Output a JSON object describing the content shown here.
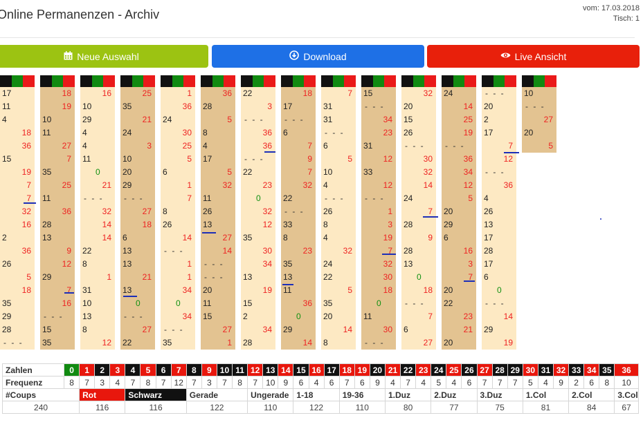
{
  "header": {
    "title": "Online Permanenzen - Archiv",
    "date": "vom: 17.03.2018",
    "table": "Tisch: 1"
  },
  "buttons": {
    "new_selection": "Neue Auswahl",
    "download": "Download",
    "live": "Live Ansicht"
  },
  "icons": [
    "calendar-icon",
    "download-circle-icon",
    "eye-icon"
  ],
  "colors": {
    "green": "#9cc312",
    "blue": "#1e70e6",
    "red": "#e8200b",
    "col_light": "#fde9c3",
    "col_dark": "#e3c391"
  },
  "permanence_columns": [
    [
      "17",
      "11",
      "4",
      "18",
      "36",
      "15",
      "19",
      "7",
      "7",
      "32",
      "16",
      "2",
      "36",
      "26",
      "5",
      "18",
      "35",
      "29",
      "28",
      "-"
    ],
    [
      "18",
      "19",
      "10",
      "11",
      "27",
      "7",
      "35",
      "25",
      "11",
      "36",
      "28",
      "13",
      "9",
      "12",
      "29",
      "7",
      "16",
      "-",
      "15",
      "35"
    ],
    [
      "16",
      "10",
      "29",
      "4",
      "4",
      "11",
      "0",
      "21",
      "-",
      "32",
      "14",
      "14",
      "22",
      "8",
      "1",
      "31",
      "10",
      "13",
      "8",
      "12"
    ],
    [
      "25",
      "35",
      "21",
      "24",
      "3",
      "10",
      "20",
      "29",
      "-",
      "27",
      "18",
      "6",
      "13",
      "13",
      "21",
      "13",
      "0",
      "-",
      "27",
      "22"
    ],
    [
      "1",
      "36",
      "24",
      "30",
      "25",
      "5",
      "6",
      "1",
      "7",
      "8",
      "26",
      "14",
      "-",
      "1",
      "1",
      "34",
      "0",
      "34",
      "-",
      "35"
    ],
    [
      "36",
      "28",
      "5",
      "8",
      "4",
      "17",
      "5",
      "32",
      "11",
      "26",
      "13",
      "27",
      "14",
      "-",
      "-",
      "20",
      "11",
      "15",
      "27",
      "1"
    ],
    [
      "22",
      "3",
      "-",
      "36",
      "36",
      "-",
      "22",
      "23",
      "0",
      "32",
      "12",
      "35",
      "30",
      "34",
      "13",
      "19",
      "15",
      "2",
      "34",
      "28"
    ],
    [
      "18",
      "17",
      "-",
      "6",
      "7",
      "9",
      "7",
      "32",
      "22",
      "-",
      "33",
      "8",
      "23",
      "35",
      "13",
      "11",
      "36",
      "0",
      "29",
      "14"
    ],
    [
      "7",
      "31",
      "31",
      "-",
      "6",
      "5",
      "10",
      "4",
      "-",
      "26",
      "8",
      "4",
      "32",
      "24",
      "22",
      "5",
      "35",
      "20",
      "14",
      "8"
    ],
    [
      "15",
      "-",
      "34",
      "23",
      "31",
      "12",
      "33",
      "12",
      "-",
      "1",
      "3",
      "19",
      "7",
      "32",
      "30",
      "18",
      "0",
      "11",
      "30",
      "-"
    ],
    [
      "32",
      "20",
      "15",
      "26",
      "-",
      "30",
      "32",
      "14",
      "24",
      "7",
      "28",
      "9",
      "28",
      "13",
      "0",
      "18",
      "-",
      "7",
      "6",
      "27"
    ],
    [
      "24",
      "14",
      "25",
      "19",
      "-",
      "36",
      "34",
      "12",
      "5",
      "20",
      "29",
      "6",
      "16",
      "3",
      "7",
      "20",
      "22",
      "23",
      "21",
      "20"
    ],
    [
      "-",
      "20",
      "2",
      "17",
      "7",
      "12",
      "-",
      "36",
      "4",
      "26",
      "13",
      "17",
      "28",
      "17",
      "6",
      "0",
      "-",
      "14",
      "29",
      "19"
    ],
    [
      "10",
      "-",
      "27",
      "20",
      "5"
    ]
  ],
  "stats": {
    "zahlen_label": "Zahlen",
    "frequenz_label": "Frequenz",
    "numbers": [
      "0",
      "1",
      "2",
      "3",
      "4",
      "5",
      "6",
      "7",
      "8",
      "9",
      "10",
      "11",
      "12",
      "13",
      "14",
      "15",
      "16",
      "17",
      "18",
      "19",
      "20",
      "21",
      "22",
      "23",
      "24",
      "25",
      "26",
      "27",
      "28",
      "29",
      "30",
      "31",
      "32",
      "33",
      "34",
      "35",
      "36"
    ],
    "frequencies": [
      "8",
      "7",
      "3",
      "4",
      "7",
      "8",
      "7",
      "12",
      "7",
      "3",
      "7",
      "8",
      "7",
      "10",
      "9",
      "6",
      "4",
      "6",
      "7",
      "6",
      "9",
      "4",
      "7",
      "4",
      "5",
      "4",
      "6",
      "7",
      "7",
      "7",
      "5",
      "4",
      "9",
      "2",
      "6",
      "8",
      "10"
    ],
    "categories": [
      {
        "label": "#Coups",
        "value": "240"
      },
      {
        "label": "Rot",
        "value": "116"
      },
      {
        "label": "Schwarz",
        "value": "116"
      },
      {
        "label": "Gerade",
        "value": "122"
      },
      {
        "label": "Ungerade",
        "value": "110"
      },
      {
        "label": "1-18",
        "value": "122"
      },
      {
        "label": "19-36",
        "value": "110"
      },
      {
        "label": "1.Duz",
        "value": "80"
      },
      {
        "label": "2.Duz",
        "value": "77"
      },
      {
        "label": "3.Duz",
        "value": "75"
      },
      {
        "label": "1.Col",
        "value": "81"
      },
      {
        "label": "2.Col",
        "value": "84"
      },
      {
        "label": "3.Col",
        "value": "67"
      }
    ]
  }
}
